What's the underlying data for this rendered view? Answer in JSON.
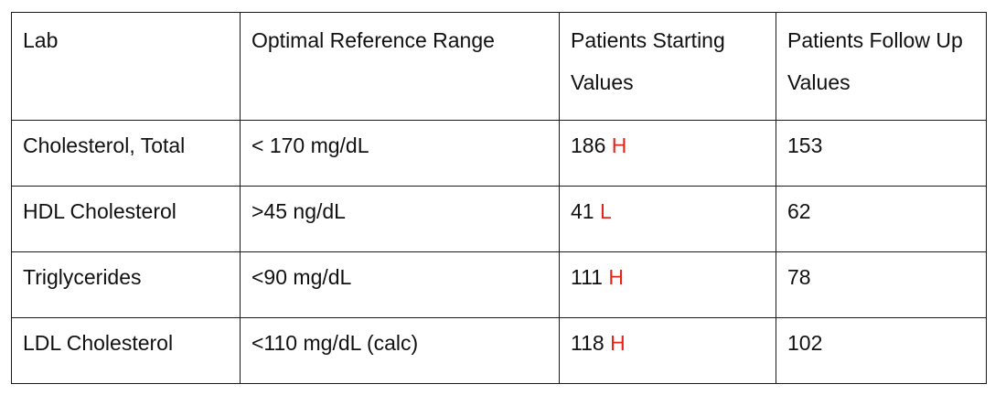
{
  "table": {
    "headers": [
      "Lab",
      "Optimal Reference Range",
      "Patients Starting Values",
      "Patients Follow Up Values"
    ],
    "rows": [
      {
        "lab": "Cholesterol, Total",
        "range": "< 170 mg/dL",
        "start_value": "186",
        "start_flag": "H",
        "follow_up": "153"
      },
      {
        "lab": "HDL Cholesterol",
        "range": ">45 ng/dL",
        "start_value": "41",
        "start_flag": "L",
        "follow_up": "62"
      },
      {
        "lab": "Triglycerides",
        "range": "<90 mg/dL",
        "start_value": "111",
        "start_flag": "H",
        "follow_up": "78"
      },
      {
        "lab": "LDL Cholesterol",
        "range": "<110 mg/dL (calc)",
        "start_value": "118",
        "start_flag": "H",
        "follow_up": "102"
      }
    ]
  },
  "colors": {
    "flag": "#e3261b",
    "text": "#111111",
    "border": "#1a1a1a"
  }
}
